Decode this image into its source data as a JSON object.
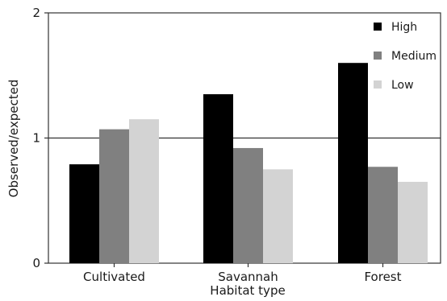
{
  "chart_data": {
    "type": "bar",
    "categories": [
      "Cultivated",
      "Savannah",
      "Forest"
    ],
    "series": [
      {
        "name": "High",
        "color": "#000000",
        "values": [
          0.79,
          1.35,
          1.6
        ]
      },
      {
        "name": "Medium",
        "color": "#808080",
        "values": [
          1.07,
          0.92,
          0.77
        ]
      },
      {
        "name": "Low",
        "color": "#d3d3d3",
        "values": [
          1.15,
          0.75,
          0.65
        ]
      }
    ],
    "xlabel": "Habitat type",
    "ylabel": "Observed/expected",
    "ylim": [
      0,
      2
    ],
    "yticks": [
      "0",
      "1",
      "2"
    ],
    "reference_line": 1,
    "grid": false,
    "legend_position": "top-right"
  }
}
